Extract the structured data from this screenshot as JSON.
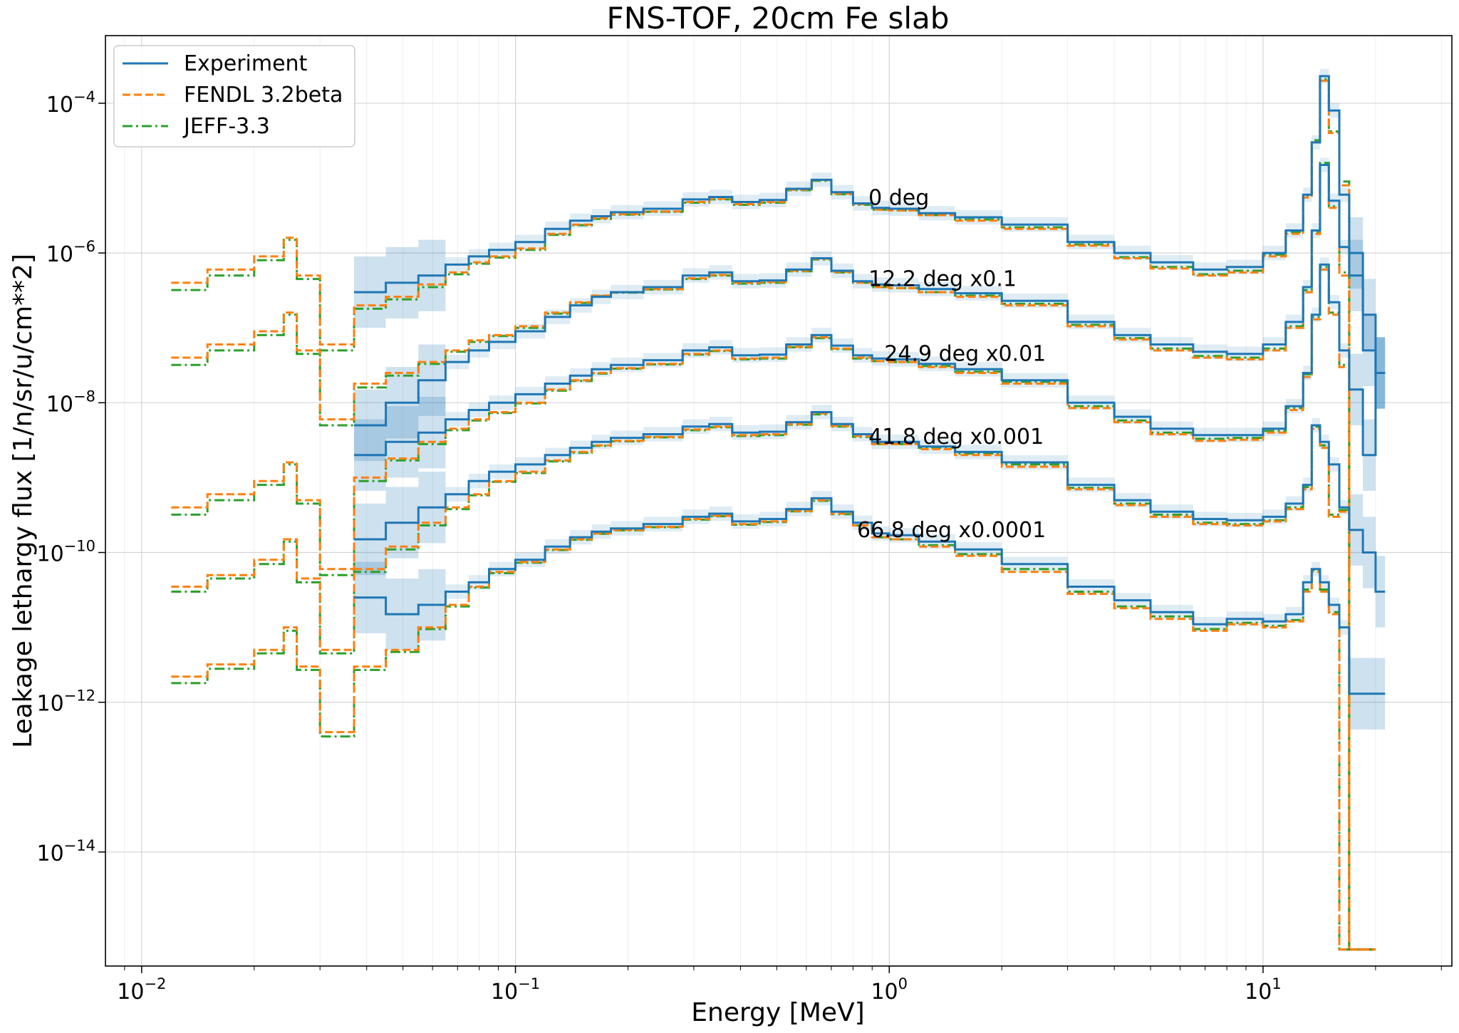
{
  "chart_data": {
    "type": "line",
    "title": "FNS-TOF, 20cm Fe slab",
    "xlabel": "Energy [MeV]",
    "ylabel": "Leakage lethargy flux [1/n/sr/u/cm**2]",
    "xscale": "log",
    "yscale": "log",
    "xlim": [
      0.008,
      32
    ],
    "ylim": [
      3e-16,
      0.0008
    ],
    "grid": true,
    "legend_position": "top-left",
    "x_ticks": [
      {
        "base": "10",
        "exp": "−2"
      },
      {
        "base": "10",
        "exp": "−1"
      },
      {
        "base": "10",
        "exp": "0"
      },
      {
        "base": "10",
        "exp": "1"
      }
    ],
    "y_ticks": [
      {
        "base": "10",
        "exp": "−4"
      },
      {
        "base": "10",
        "exp": "−6"
      },
      {
        "base": "10",
        "exp": "−8"
      },
      {
        "base": "10",
        "exp": "−10"
      },
      {
        "base": "10",
        "exp": "−12"
      },
      {
        "base": "10",
        "exp": "−14"
      }
    ],
    "legend": [
      "Experiment",
      "FENDL 3.2beta",
      "JEFF-3.3"
    ],
    "colors": {
      "Experiment": "#1f77b4",
      "FENDL 3.2beta": "#ff7f0e",
      "JEFF-3.3": "#2ca02c",
      "band": "#1f77b4"
    },
    "energies": [
      0.012,
      0.015,
      0.02,
      0.024,
      0.026,
      0.03,
      0.037,
      0.045,
      0.055,
      0.065,
      0.075,
      0.085,
      0.1,
      0.12,
      0.14,
      0.16,
      0.18,
      0.22,
      0.28,
      0.33,
      0.38,
      0.45,
      0.53,
      0.62,
      0.7,
      0.8,
      0.9,
      1.0,
      1.2,
      1.5,
      2.0,
      3.0,
      4.0,
      5.0,
      6.5,
      8.0,
      10.0,
      11.5,
      12.8,
      13.5,
      14.2,
      15.0,
      16.0,
      17.0,
      18.5,
      20.0
    ],
    "experiment_range": [
      0.037,
      20.0
    ],
    "series": [
      {
        "name": "0 deg",
        "annotation": "0 deg",
        "annotation_at": {
          "x": 0.88,
          "y": 5.5e-06
        },
        "experiment": [
          null,
          null,
          null,
          null,
          null,
          null,
          3e-07,
          4e-07,
          5e-07,
          7e-07,
          9e-07,
          1.1e-06,
          1.4e-06,
          2.1e-06,
          2.7e-06,
          3.1e-06,
          3.5e-06,
          3.9e-06,
          5.2e-06,
          5.6e-06,
          4.8e-06,
          5.1e-06,
          7.2e-06,
          9.5e-06,
          6.5e-06,
          4.6e-06,
          4e-06,
          3.9e-06,
          3.4e-06,
          3e-06,
          2.4e-06,
          1.4e-06,
          1e-06,
          7.5e-07,
          6e-07,
          6.5e-07,
          1e-06,
          2e-06,
          6e-06,
          3e-05,
          0.00023,
          8e-05,
          6e-06,
          1e-06,
          1.5e-07,
          2.5e-08
        ],
        "fendl": [
          4e-07,
          6e-07,
          9e-07,
          1.6e-06,
          5e-07,
          6e-08,
          2e-07,
          2.6e-07,
          3.8e-07,
          5.5e-07,
          7.5e-07,
          9e-07,
          1.15e-06,
          1.8e-06,
          2.4e-06,
          2.9e-06,
          3.3e-06,
          3.6e-06,
          4.8e-06,
          5.3e-06,
          4.5e-06,
          4.8e-06,
          7e-06,
          9.4e-06,
          6.2e-06,
          4.5e-06,
          3.8e-06,
          3.7e-06,
          3.2e-06,
          2.7e-06,
          2.1e-06,
          1.25e-06,
          8.5e-07,
          6.2e-07,
          5e-07,
          5.5e-07,
          9e-07,
          1.8e-06,
          5.5e-06,
          3e-05,
          0.0002,
          4e-05,
          8e-06,
          5e-16,
          5e-16,
          null
        ],
        "jeff": [
          3.2e-07,
          5e-07,
          8e-07,
          1.5e-06,
          4.5e-07,
          5e-08,
          1.8e-07,
          2.4e-07,
          3.5e-07,
          5.2e-07,
          7.2e-07,
          8.7e-07,
          1.1e-06,
          1.75e-06,
          2.35e-06,
          2.85e-06,
          3.25e-06,
          3.55e-06,
          4.7e-06,
          5.2e-06,
          4.4e-06,
          4.7e-06,
          6.9e-06,
          9.2e-06,
          6.1e-06,
          4.4e-06,
          3.8e-06,
          3.7e-06,
          3.2e-06,
          2.8e-06,
          2.2e-06,
          1.3e-06,
          8.8e-07,
          6.5e-07,
          5.2e-07,
          5.8e-07,
          9.5e-07,
          1.9e-06,
          5.8e-06,
          3.2e-05,
          0.00021,
          4.2e-05,
          9e-06,
          5e-16,
          5e-16,
          null
        ]
      },
      {
        "name": "12.2 deg x0.1",
        "annotation": "12.2 deg x0.1",
        "annotation_at": {
          "x": 0.88,
          "y": 4.5e-07
        },
        "experiment": [
          null,
          null,
          null,
          null,
          null,
          null,
          5e-09,
          1e-08,
          2e-08,
          3.5e-08,
          5e-08,
          6.5e-08,
          9e-08,
          1.4e-07,
          2e-07,
          2.6e-07,
          3e-07,
          3.5e-07,
          5e-07,
          5.5e-07,
          4.2e-07,
          4.3e-07,
          6e-07,
          8.5e-07,
          5.8e-07,
          4.2e-07,
          3.8e-07,
          3.7e-07,
          3.3e-07,
          2.9e-07,
          2.3e-07,
          1.2e-07,
          8e-08,
          6e-08,
          4.8e-08,
          4.5e-08,
          6e-08,
          1.2e-07,
          3.5e-07,
          2e-06,
          1.5e-05,
          5e-06,
          1.2e-06,
          5e-07,
          5e-08,
          2.5e-08
        ],
        "fendl": [
          4e-08,
          6e-08,
          9e-08,
          1.6e-07,
          5e-08,
          6e-09,
          1.8e-08,
          2.5e-08,
          3.5e-08,
          5e-08,
          6.8e-08,
          8e-08,
          1.05e-07,
          1.6e-07,
          2.2e-07,
          2.7e-07,
          3e-07,
          3.3e-07,
          4.6e-07,
          5.1e-07,
          4e-07,
          4.1e-07,
          5.8e-07,
          8.4e-07,
          5.6e-07,
          4e-07,
          3.5e-07,
          3.4e-07,
          3e-07,
          2.6e-07,
          2e-07,
          1.05e-07,
          7e-08,
          5e-08,
          4e-08,
          3.8e-08,
          5e-08,
          1e-07,
          3e-07,
          1.8e-06,
          1.5e-05,
          4e-06,
          5e-07,
          5e-16,
          5e-16,
          null
        ],
        "jeff": [
          3.2e-08,
          5e-08,
          8e-08,
          1.5e-07,
          4.5e-08,
          5e-09,
          1.6e-08,
          2.3e-08,
          3.3e-08,
          4.8e-08,
          6.5e-08,
          7.8e-08,
          1e-07,
          1.55e-07,
          2.15e-07,
          2.65e-07,
          2.95e-07,
          3.25e-07,
          4.5e-07,
          5e-07,
          3.9e-07,
          4e-07,
          5.7e-07,
          8.2e-07,
          5.5e-07,
          4e-07,
          3.5e-07,
          3.4e-07,
          3e-07,
          2.7e-07,
          2.1e-07,
          1.1e-07,
          7.3e-08,
          5.3e-08,
          4.2e-08,
          4e-08,
          5.3e-08,
          1.05e-07,
          3.2e-07,
          1.9e-06,
          1.6e-05,
          4.2e-06,
          5.5e-07,
          5e-16,
          5e-16,
          null
        ]
      },
      {
        "name": "24.9 deg x0.01",
        "annotation": "24.9 deg x0.01",
        "annotation_at": {
          "x": 0.97,
          "y": 4.5e-08
        },
        "experiment": [
          null,
          null,
          null,
          null,
          null,
          null,
          2e-09,
          3e-09,
          4e-09,
          6e-09,
          8e-09,
          1e-08,
          1.3e-08,
          1.8e-08,
          2.3e-08,
          2.8e-08,
          3.2e-08,
          3.7e-08,
          5e-08,
          5.5e-08,
          4.3e-08,
          4.4e-08,
          6e-08,
          8e-08,
          5.8e-08,
          4.3e-08,
          3.9e-08,
          3.8e-08,
          3.3e-08,
          2.8e-08,
          2e-08,
          1e-08,
          6.5e-09,
          4.5e-09,
          3.7e-09,
          3.7e-09,
          4.5e-09,
          9e-09,
          2.5e-08,
          1.5e-07,
          7e-07,
          2.2e-07,
          5e-08,
          1.5e-08,
          2e-09,
          2.5e-08
        ],
        "fendl": [
          4e-10,
          6e-10,
          9e-10,
          1.6e-09,
          5e-10,
          6e-11,
          1e-09,
          1.8e-09,
          3e-09,
          4.5e-09,
          6e-09,
          7.5e-09,
          1e-08,
          1.5e-08,
          2e-08,
          2.5e-08,
          2.9e-08,
          3.3e-08,
          4.5e-08,
          5e-08,
          3.9e-08,
          4e-08,
          5.6e-08,
          7.5e-08,
          5.3e-08,
          4e-08,
          3.6e-08,
          3.5e-08,
          3e-08,
          2.5e-08,
          1.8e-08,
          8.5e-09,
          5.5e-09,
          3.8e-09,
          3.1e-09,
          3.2e-09,
          4e-09,
          8e-09,
          2.2e-08,
          1.3e-07,
          6e-07,
          1.5e-07,
          3e-08,
          5e-16,
          5e-16,
          null
        ],
        "jeff": [
          3.2e-10,
          5e-10,
          8e-10,
          1.5e-09,
          4.5e-10,
          5e-11,
          9e-10,
          1.7e-09,
          2.8e-09,
          4.3e-09,
          5.8e-09,
          7.3e-09,
          9.8e-09,
          1.45e-08,
          1.95e-08,
          2.45e-08,
          2.85e-08,
          3.25e-08,
          4.4e-08,
          4.9e-08,
          3.8e-08,
          3.9e-08,
          5.5e-08,
          7.3e-08,
          5.2e-08,
          3.9e-08,
          3.6e-08,
          3.5e-08,
          3.1e-08,
          2.6e-08,
          1.9e-08,
          9e-09,
          5.8e-09,
          4e-09,
          3.3e-09,
          3.4e-09,
          4.2e-09,
          8.5e-09,
          2.4e-08,
          1.4e-07,
          6.5e-07,
          1.6e-07,
          3.2e-08,
          5e-16,
          5e-16,
          null
        ]
      },
      {
        "name": "41.8 deg x0.001",
        "annotation": "41.8 deg x0.001",
        "annotation_at": {
          "x": 0.88,
          "y": 3.5e-09
        },
        "experiment": [
          null,
          null,
          null,
          null,
          null,
          null,
          1.5e-10,
          2.5e-10,
          4e-10,
          6e-10,
          9e-10,
          1.2e-09,
          1.5e-09,
          2e-09,
          2.5e-09,
          3e-09,
          3.4e-09,
          3.8e-09,
          4.8e-09,
          5.2e-09,
          4e-09,
          4.1e-09,
          5.5e-09,
          7.5e-09,
          5.2e-09,
          3.8e-09,
          3e-09,
          3e-09,
          2.6e-09,
          2.2e-09,
          1.6e-09,
          8e-10,
          5e-10,
          3.5e-10,
          2.8e-10,
          2.7e-10,
          3e-10,
          4.5e-10,
          8e-10,
          5e-09,
          3e-09,
          1.5e-09,
          4e-10,
          2e-10,
          1e-10,
          3e-11
        ],
        "fendl": [
          3.5e-11,
          5e-11,
          8e-11,
          1.5e-10,
          4.5e-11,
          5e-12,
          6e-11,
          1.2e-10,
          2.5e-10,
          4e-10,
          6e-10,
          9e-10,
          1.2e-09,
          1.7e-09,
          2.2e-09,
          2.7e-09,
          3.1e-09,
          3.5e-09,
          4.4e-09,
          4.8e-09,
          3.7e-09,
          3.8e-09,
          5.2e-09,
          7.2e-09,
          4.9e-09,
          3.6e-09,
          2.8e-09,
          2.8e-09,
          2.4e-09,
          2e-09,
          1.4e-09,
          7e-10,
          4.3e-10,
          3e-10,
          2.4e-10,
          2.3e-10,
          2.6e-10,
          3.8e-10,
          7e-10,
          4.5e-09,
          2.5e-09,
          3e-10,
          3.5e-10,
          5e-16,
          5e-16,
          null
        ],
        "jeff": [
          3e-11,
          4.5e-11,
          7e-11,
          1.4e-10,
          4e-11,
          4.5e-12,
          5.5e-11,
          1.1e-10,
          2.3e-10,
          3.8e-10,
          5.8e-10,
          8.8e-10,
          1.15e-09,
          1.65e-09,
          2.15e-09,
          2.65e-09,
          3.05e-09,
          3.45e-09,
          4.3e-09,
          4.7e-09,
          3.6e-09,
          3.7e-09,
          5.1e-09,
          7e-09,
          4.8e-09,
          3.5e-09,
          2.8e-09,
          2.8e-09,
          2.5e-09,
          2.1e-09,
          1.5e-09,
          7.3e-10,
          4.5e-10,
          3.2e-10,
          2.5e-10,
          2.4e-10,
          2.7e-10,
          4e-10,
          7.5e-10,
          4.8e-09,
          2.7e-09,
          3.2e-10,
          3.7e-10,
          5e-16,
          5e-16,
          null
        ]
      },
      {
        "name": "66.8 deg x0.0001",
        "annotation": "66.8 deg x0.0001",
        "annotation_at": {
          "x": 0.82,
          "y": 2e-10
        },
        "experiment": [
          null,
          null,
          null,
          null,
          null,
          null,
          2.5e-11,
          1.5e-11,
          2e-11,
          3e-11,
          4e-11,
          6e-11,
          8e-11,
          1.2e-10,
          1.6e-10,
          1.9e-10,
          2.1e-10,
          2.4e-10,
          3e-10,
          3.3e-10,
          2.6e-10,
          2.8e-10,
          3.8e-10,
          5.3e-10,
          3.5e-10,
          2.5e-10,
          1.8e-10,
          1.7e-10,
          1.4e-10,
          1.1e-10,
          7e-11,
          3.5e-11,
          2.3e-11,
          1.6e-11,
          1.1e-11,
          1.3e-11,
          1.2e-11,
          1.5e-11,
          4e-11,
          6e-11,
          4e-11,
          2e-11,
          1e-11,
          1.3e-12,
          1.3e-12,
          1.3e-12
        ],
        "fendl": [
          2.2e-12,
          3.2e-12,
          5e-12,
          1e-11,
          3e-12,
          4e-13,
          3e-12,
          5e-12,
          1e-11,
          2e-11,
          3.5e-11,
          5.5e-11,
          7.5e-11,
          1.1e-10,
          1.5e-10,
          1.8e-10,
          2e-10,
          2.2e-10,
          2.8e-10,
          3.1e-10,
          2.4e-10,
          2.6e-10,
          3.6e-10,
          5e-10,
          3.3e-10,
          2.3e-10,
          1.6e-10,
          1.5e-10,
          1.2e-10,
          9e-11,
          5.5e-11,
          2.8e-11,
          1.8e-11,
          1.3e-11,
          9e-12,
          1.1e-11,
          1e-11,
          1.2e-11,
          3e-11,
          5.5e-11,
          3e-11,
          1.5e-11,
          5e-16,
          5e-16,
          5e-16,
          null
        ],
        "jeff": [
          1.8e-12,
          2.8e-12,
          4.5e-12,
          9e-12,
          2.7e-12,
          3.5e-13,
          2.7e-12,
          4.7e-12,
          9.5e-12,
          1.9e-11,
          3.4e-11,
          5.3e-11,
          7.3e-11,
          1.08e-10,
          1.48e-10,
          1.78e-10,
          1.98e-10,
          2.18e-10,
          2.75e-10,
          3.05e-10,
          2.35e-10,
          2.55e-10,
          3.55e-10,
          4.9e-10,
          3.25e-10,
          2.3e-10,
          1.6e-10,
          1.5e-10,
          1.25e-10,
          9.5e-11,
          6e-11,
          3e-11,
          1.9e-11,
          1.4e-11,
          9.5e-12,
          1.15e-11,
          1.05e-11,
          1.25e-11,
          3.2e-11,
          5.8e-11,
          3.2e-11,
          1.6e-11,
          5e-16,
          5e-16,
          5e-16,
          null
        ]
      }
    ]
  }
}
